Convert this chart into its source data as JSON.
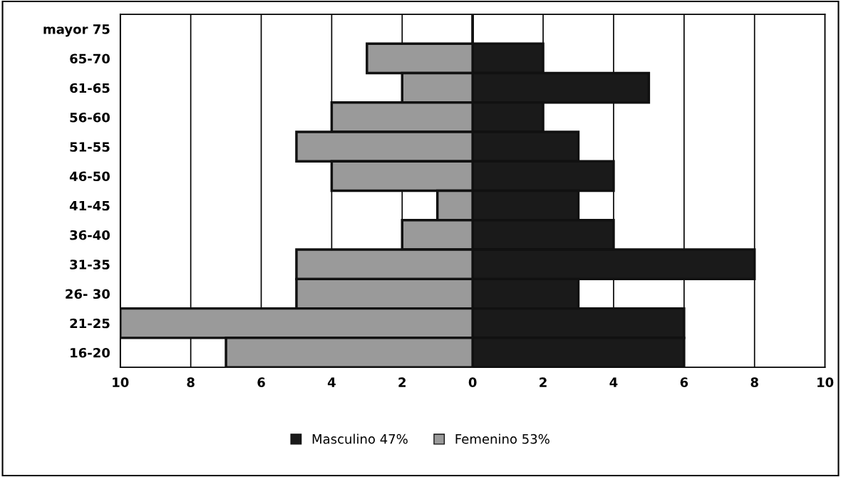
{
  "chart_data": {
    "type": "bar",
    "orientation": "horizontal",
    "stacked": true,
    "categories": [
      "mayor 75",
      "65-70",
      "61-65",
      "56-60",
      "51-55",
      "46-50",
      "41-45",
      "36-40",
      "31-35",
      "26- 30",
      "21-25",
      "16-20"
    ],
    "series": [
      {
        "name": "Masculino 47%",
        "color": "#1a1a1a",
        "values": [
          0,
          2,
          5,
          2,
          3,
          4,
          3,
          4,
          8,
          3,
          6,
          6
        ]
      },
      {
        "name": "Femenino 53%",
        "color": "#9a9a9a",
        "values": [
          0,
          -3,
          -2,
          -4,
          -5,
          -4,
          -1,
          -2,
          -5,
          -5,
          -10,
          -7
        ]
      }
    ],
    "xlim": [
      -10,
      10
    ],
    "xticks": [
      {
        "value": -10,
        "label": "10"
      },
      {
        "value": -8,
        "label": "8"
      },
      {
        "value": -6,
        "label": "6"
      },
      {
        "value": -4,
        "label": "4"
      },
      {
        "value": -2,
        "label": "2"
      },
      0,
      2,
      4,
      6,
      8,
      10
    ],
    "grid": "x",
    "legend": "bottom"
  }
}
